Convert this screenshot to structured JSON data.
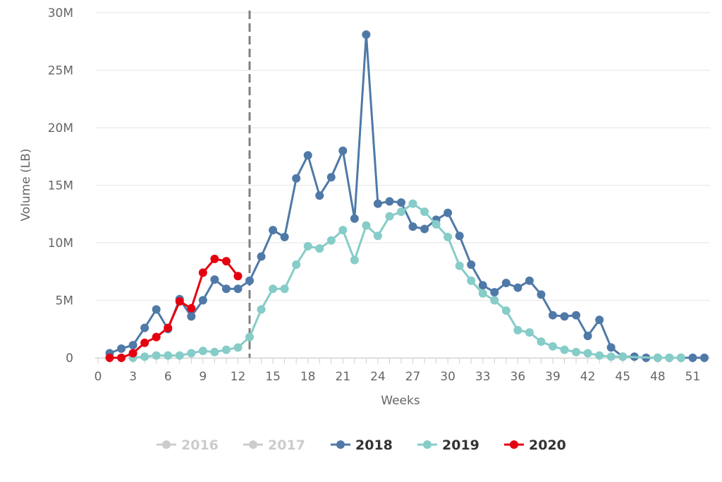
{
  "chart_data": {
    "type": "line",
    "xlabel": "Weeks",
    "ylabel": "Volume (LB)",
    "xlim": [
      0,
      52
    ],
    "ylim": [
      0,
      30000000
    ],
    "x_ticks": [
      0,
      3,
      6,
      9,
      12,
      15,
      18,
      21,
      24,
      27,
      30,
      33,
      36,
      39,
      42,
      45,
      48,
      51
    ],
    "y_ticks": [
      0,
      5000000,
      10000000,
      15000000,
      20000000,
      25000000,
      30000000
    ],
    "y_tick_labels": [
      "0",
      "5M",
      "10M",
      "15M",
      "20M",
      "25M",
      "30M"
    ],
    "grid": "horizontal",
    "legend_position": "bottom-center",
    "vertical_marker": {
      "x": 13,
      "style": "dashed",
      "color": "#808080"
    },
    "series": [
      {
        "name": "2016",
        "color": "#cccccc",
        "visible": false,
        "x": [],
        "values": []
      },
      {
        "name": "2017",
        "color": "#cccccc",
        "visible": false,
        "x": [],
        "values": []
      },
      {
        "name": "2018",
        "color": "#4f79a7",
        "visible": true,
        "x": [
          1,
          2,
          3,
          4,
          5,
          6,
          7,
          8,
          9,
          10,
          11,
          12,
          13,
          14,
          15,
          16,
          17,
          18,
          19,
          20,
          21,
          22,
          23,
          24,
          25,
          26,
          27,
          28,
          29,
          30,
          31,
          32,
          33,
          34,
          35,
          36,
          37,
          38,
          39,
          40,
          41,
          42,
          43,
          44,
          45,
          46,
          47,
          48,
          49,
          50,
          51,
          52
        ],
        "values": [
          400000,
          800000,
          1100000,
          2600000,
          4200000,
          2500000,
          5100000,
          3600000,
          5000000,
          6800000,
          6000000,
          6000000,
          6700000,
          8800000,
          11100000,
          10500000,
          15600000,
          17600000,
          14100000,
          15700000,
          18000000,
          12100000,
          28100000,
          13400000,
          13600000,
          13500000,
          11400000,
          11200000,
          12000000,
          12600000,
          10600000,
          8100000,
          6300000,
          5700000,
          6500000,
          6100000,
          6700000,
          5500000,
          3700000,
          3600000,
          3700000,
          1900000,
          3300000,
          900000,
          100000,
          100000,
          0,
          0,
          0,
          0,
          0,
          0
        ]
      },
      {
        "name": "2019",
        "color": "#86ccc8",
        "visible": true,
        "x": [
          3,
          4,
          5,
          6,
          7,
          8,
          9,
          10,
          11,
          12,
          13,
          14,
          15,
          16,
          17,
          18,
          19,
          20,
          21,
          22,
          23,
          24,
          25,
          26,
          27,
          28,
          29,
          30,
          31,
          32,
          33,
          34,
          35,
          36,
          37,
          38,
          39,
          40,
          41,
          42,
          43,
          44,
          45,
          48,
          49,
          50
        ],
        "values": [
          0,
          100000,
          200000,
          200000,
          200000,
          400000,
          600000,
          500000,
          700000,
          900000,
          1800000,
          4200000,
          6000000,
          6000000,
          8100000,
          9700000,
          9500000,
          10200000,
          11100000,
          8500000,
          11500000,
          10600000,
          12300000,
          12700000,
          13400000,
          12700000,
          11600000,
          10500000,
          8000000,
          6700000,
          5600000,
          5000000,
          4100000,
          2400000,
          2200000,
          1400000,
          1000000,
          700000,
          500000,
          400000,
          200000,
          100000,
          100000,
          0,
          0,
          0
        ]
      },
      {
        "name": "2020",
        "color": "#e5000f",
        "visible": true,
        "x": [
          1,
          2,
          3,
          4,
          5,
          6,
          7,
          8,
          9,
          10,
          11,
          12
        ],
        "values": [
          0,
          0,
          400000,
          1300000,
          1800000,
          2600000,
          4900000,
          4300000,
          7400000,
          8600000,
          8400000,
          7100000
        ]
      }
    ]
  }
}
